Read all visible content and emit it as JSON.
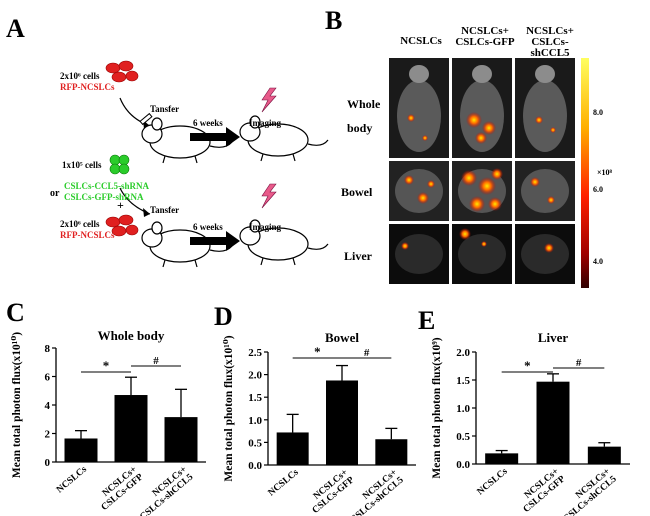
{
  "panels": {
    "A": {
      "label": "A",
      "cells1": "2x10⁶ cells",
      "rfp1": "RFP-NCSLCs",
      "transfer1": "Tansfer",
      "weeks1": "6 weeks",
      "imaging1": "Imaging",
      "cells_green": "1x10⁵ cells",
      "or": "or",
      "shrna1": "CSLCs-CCL5-shRNA",
      "shrna2": "CSLCs-GFP-shRNA",
      "plus": "+",
      "cells2": "2x10⁶ cells",
      "rfp2": "RFP-NCSLCs",
      "transfer2": "Tansfer",
      "weeks2": "6 weeks",
      "imaging2": "Imaging"
    },
    "B": {
      "label": "B",
      "columns": [
        "NCSLCs",
        "NCSLCs+ CSLCs-GFP",
        "NCSLCs+ CSLCs-shCCL5"
      ],
      "rows": [
        "Whole body",
        "Bowel",
        "Liver"
      ],
      "colorbar_ticks": [
        "8.0",
        "6.0",
        "4.0"
      ],
      "colorbar_unit": "×10⁸"
    },
    "C": {
      "label": "C"
    },
    "D": {
      "label": "D"
    },
    "E": {
      "label": "E"
    }
  },
  "colors": {
    "bar": "#000000",
    "tumor_red": "#e02020",
    "tumor_green": "#2bcc2b",
    "hot": "#ff4a00",
    "hot_yellow": "#ffe800"
  },
  "chart_data": [
    {
      "type": "bar",
      "title": "Whole body",
      "categories": [
        "NCSLCs",
        "NCSLCs+ CSLCs-GFP",
        "NCSLCs+ CSLCs-shCCL5"
      ],
      "values": [
        1.65,
        4.7,
        3.15
      ],
      "errors": [
        0.55,
        1.25,
        1.95
      ],
      "ylabel": "Mean total photon flux(x10¹⁰)",
      "ylim": [
        0,
        8
      ],
      "yticks": [
        "0",
        "2",
        "4",
        "6",
        "8"
      ],
      "significance": [
        "*",
        "#"
      ]
    },
    {
      "type": "bar",
      "title": "Bowel",
      "categories": [
        "NCSLCs",
        "NCSLCs+ CSLCs-GFP",
        "NCSLCs+ CSLCs-shCCL5"
      ],
      "values": [
        0.72,
        1.87,
        0.57
      ],
      "errors": [
        0.4,
        0.33,
        0.24
      ],
      "ylabel": "Mean total photon flux(x10¹⁰)",
      "ylim": [
        0,
        2.5
      ],
      "yticks": [
        "0.0",
        "0.5",
        "1.0",
        "1.5",
        "2.0",
        "2.5"
      ],
      "significance": [
        "*",
        "#"
      ]
    },
    {
      "type": "bar",
      "title": "Liver",
      "categories": [
        "NCSLCs",
        "NCSLCs+ CSLCs-GFP",
        "NCSLCs+ CSLCs-shCCL5"
      ],
      "values": [
        0.19,
        1.47,
        0.31
      ],
      "errors": [
        0.05,
        0.14,
        0.07
      ],
      "ylabel": "Mean total photon flux(x10⁹)",
      "ylim": [
        0,
        2.0
      ],
      "yticks": [
        "0.0",
        "0.5",
        "1.0",
        "1.5",
        "2.0"
      ],
      "significance": [
        "*",
        "#"
      ]
    }
  ]
}
